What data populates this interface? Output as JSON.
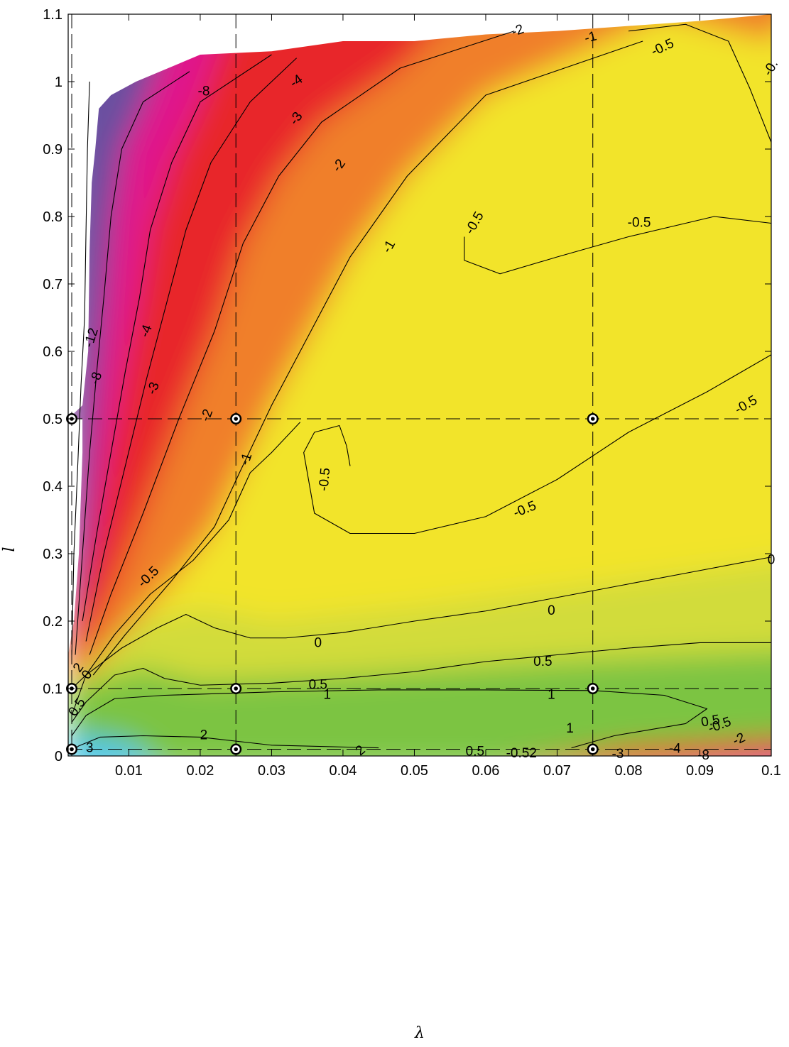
{
  "chart_data": {
    "type": "contour",
    "xlabel": "λ",
    "ylabel": "l",
    "xlim": [
      0.0015,
      0.1
    ],
    "ylim": [
      0,
      1.1
    ],
    "x_ticks": [
      0.01,
      0.02,
      0.03,
      0.04,
      0.05,
      0.06,
      0.07,
      0.08,
      0.09,
      0.1
    ],
    "x_tick_labels": [
      "0.01",
      "0.02",
      "0.03",
      "0.04",
      "0.05",
      "0.06",
      "0.07",
      "0.08",
      "0.09",
      "0.1"
    ],
    "y_ticks": [
      0,
      0.1,
      0.2,
      0.3,
      0.4,
      0.5,
      0.6,
      0.7,
      0.8,
      0.9,
      1.0,
      1.1
    ],
    "y_tick_labels": [
      "0",
      "0.1",
      "0.2",
      "0.3",
      "0.4",
      "0.5",
      "0.6",
      "0.7",
      "0.8",
      "0.9",
      "1",
      "1.1"
    ],
    "grid_lines": {
      "x": [
        0.002,
        0.025,
        0.075
      ],
      "y": [
        0.01,
        0.1,
        0.5
      ],
      "style": "dashed"
    },
    "markers": [
      {
        "x": 0.002,
        "y": 0.01
      },
      {
        "x": 0.025,
        "y": 0.01
      },
      {
        "x": 0.075,
        "y": 0.01
      },
      {
        "x": 0.002,
        "y": 0.1
      },
      {
        "x": 0.025,
        "y": 0.1
      },
      {
        "x": 0.075,
        "y": 0.1
      },
      {
        "x": 0.002,
        "y": 0.5
      },
      {
        "x": 0.025,
        "y": 0.5
      },
      {
        "x": 0.075,
        "y": 0.5
      }
    ],
    "colors": {
      "violet": "#6a4fa0",
      "magenta": "#e0168c",
      "red": "#e8262c",
      "orange": "#f07f2a",
      "yellow": "#f2e42a",
      "yellow_green": "#d2dc3a",
      "green": "#7cc443",
      "cyan": "#40c4ea"
    },
    "contours": [
      {
        "level": -12,
        "points": [
          [
            0.0045,
            1.0
          ],
          [
            0.0042,
            0.9
          ],
          [
            0.004,
            0.78
          ],
          [
            0.0038,
            0.65
          ],
          [
            0.0033,
            0.55
          ],
          [
            0.0028,
            0.42
          ],
          [
            0.0023,
            0.3
          ],
          [
            0.002,
            0.15
          ]
        ]
      },
      {
        "level": -8,
        "points": [
          [
            0.0185,
            1.015
          ],
          [
            0.012,
            0.97
          ],
          [
            0.009,
            0.9
          ],
          [
            0.0075,
            0.8
          ],
          [
            0.0065,
            0.68
          ],
          [
            0.0055,
            0.57
          ],
          [
            0.0045,
            0.45
          ],
          [
            0.0035,
            0.3
          ],
          [
            0.0025,
            0.15
          ]
        ]
      },
      {
        "level": -4,
        "points": [
          [
            0.03,
            1.04
          ],
          [
            0.02,
            0.97
          ],
          [
            0.016,
            0.88
          ],
          [
            0.013,
            0.78
          ],
          [
            0.0115,
            0.68
          ],
          [
            0.0095,
            0.57
          ],
          [
            0.0075,
            0.45
          ],
          [
            0.0055,
            0.33
          ],
          [
            0.0035,
            0.2
          ]
        ]
      },
      {
        "level": -3,
        "points": [
          [
            0.0335,
            1.035
          ],
          [
            0.027,
            0.97
          ],
          [
            0.0215,
            0.88
          ],
          [
            0.018,
            0.78
          ],
          [
            0.0155,
            0.68
          ],
          [
            0.0125,
            0.56
          ],
          [
            0.0095,
            0.43
          ],
          [
            0.0065,
            0.3
          ],
          [
            0.004,
            0.17
          ]
        ]
      },
      {
        "level": -2,
        "points": [
          [
            0.064,
            1.075
          ],
          [
            0.048,
            1.02
          ],
          [
            0.037,
            0.94
          ],
          [
            0.031,
            0.86
          ],
          [
            0.026,
            0.76
          ],
          [
            0.022,
            0.63
          ],
          [
            0.017,
            0.5
          ],
          [
            0.012,
            0.36
          ],
          [
            0.0075,
            0.24
          ],
          [
            0.0045,
            0.15
          ]
        ]
      },
      {
        "level": -1,
        "points": [
          [
            0.082,
            1.06
          ],
          [
            0.06,
            0.98
          ],
          [
            0.049,
            0.86
          ],
          [
            0.041,
            0.74
          ],
          [
            0.035,
            0.62
          ],
          [
            0.03,
            0.52
          ],
          [
            0.0255,
            0.42
          ],
          [
            0.022,
            0.34
          ],
          [
            0.016,
            0.26
          ],
          [
            0.0095,
            0.18
          ],
          [
            0.005,
            0.12
          ]
        ]
      },
      {
        "level": -0.5,
        "points": [
          [
            0.1,
            0.91
          ],
          [
            0.097,
            0.99
          ],
          [
            0.094,
            1.06
          ],
          [
            0.088,
            1.085
          ],
          [
            0.08,
            1.075
          ]
        ]
      },
      {
        "level": -0.5,
        "points": [
          [
            0.1,
            0.79
          ],
          [
            0.092,
            0.8
          ],
          [
            0.08,
            0.77
          ],
          [
            0.07,
            0.74
          ],
          [
            0.062,
            0.715
          ],
          [
            0.057,
            0.735
          ],
          [
            0.057,
            0.77
          ]
        ]
      },
      {
        "level": -0.5,
        "points": [
          [
            0.1,
            0.595
          ],
          [
            0.091,
            0.54
          ],
          [
            0.08,
            0.48
          ],
          [
            0.07,
            0.41
          ],
          [
            0.06,
            0.355
          ],
          [
            0.05,
            0.33
          ],
          [
            0.041,
            0.33
          ],
          [
            0.036,
            0.36
          ],
          [
            0.035,
            0.42
          ],
          [
            0.0345,
            0.45
          ],
          [
            0.036,
            0.48
          ],
          [
            0.0395,
            0.49
          ],
          [
            0.0405,
            0.46
          ],
          [
            0.041,
            0.43
          ]
        ]
      },
      {
        "level": -0.5,
        "points": [
          [
            0.034,
            0.495
          ],
          [
            0.03,
            0.45
          ],
          [
            0.027,
            0.42
          ],
          [
            0.024,
            0.35
          ],
          [
            0.019,
            0.29
          ],
          [
            0.013,
            0.24
          ],
          [
            0.008,
            0.18
          ],
          [
            0.004,
            0.12
          ],
          [
            0.002,
            0.06
          ]
        ]
      },
      {
        "level": 0,
        "points": [
          [
            0.1,
            0.295
          ],
          [
            0.09,
            0.275
          ],
          [
            0.08,
            0.255
          ],
          [
            0.07,
            0.235
          ],
          [
            0.06,
            0.215
          ],
          [
            0.05,
            0.2
          ],
          [
            0.04,
            0.183
          ],
          [
            0.032,
            0.175
          ],
          [
            0.027,
            0.175
          ],
          [
            0.022,
            0.19
          ],
          [
            0.018,
            0.21
          ],
          [
            0.014,
            0.19
          ],
          [
            0.009,
            0.16
          ],
          [
            0.004,
            0.12
          ],
          [
            0.002,
            0.1
          ]
        ]
      },
      {
        "level": 0.5,
        "points": [
          [
            0.1,
            0.168
          ],
          [
            0.09,
            0.168
          ],
          [
            0.08,
            0.16
          ],
          [
            0.07,
            0.15
          ],
          [
            0.06,
            0.14
          ],
          [
            0.05,
            0.125
          ],
          [
            0.04,
            0.115
          ],
          [
            0.03,
            0.108
          ],
          [
            0.02,
            0.105
          ],
          [
            0.015,
            0.115
          ],
          [
            0.012,
            0.13
          ],
          [
            0.008,
            0.12
          ],
          [
            0.004,
            0.08
          ],
          [
            0.002,
            0.05
          ]
        ]
      },
      {
        "level": 1,
        "points": [
          [
            0.072,
            0.012
          ],
          [
            0.078,
            0.03
          ],
          [
            0.088,
            0.048
          ],
          [
            0.091,
            0.07
          ],
          [
            0.085,
            0.09
          ],
          [
            0.075,
            0.097
          ],
          [
            0.06,
            0.098
          ],
          [
            0.045,
            0.098
          ],
          [
            0.03,
            0.095
          ],
          [
            0.015,
            0.09
          ],
          [
            0.008,
            0.085
          ],
          [
            0.004,
            0.06
          ],
          [
            0.002,
            0.03
          ]
        ]
      },
      {
        "level": 2,
        "points": [
          [
            0.045,
            0.012
          ],
          [
            0.03,
            0.016
          ],
          [
            0.02,
            0.028
          ],
          [
            0.012,
            0.03
          ],
          [
            0.006,
            0.028
          ],
          [
            0.003,
            0.015
          ],
          [
            0.002,
            0.008
          ]
        ]
      }
    ],
    "contour_labels": [
      {
        "text": "-12",
        "x": 0.0048,
        "y": 0.62,
        "angle": -72
      },
      {
        "text": "-8",
        "x": 0.0055,
        "y": 0.56,
        "angle": -72
      },
      {
        "text": "-8",
        "x": 0.0205,
        "y": 0.985,
        "angle": 0
      },
      {
        "text": "-4",
        "x": 0.0125,
        "y": 0.63,
        "angle": -70
      },
      {
        "text": "-4",
        "x": 0.0335,
        "y": 1.0,
        "angle": -35
      },
      {
        "text": "-3",
        "x": 0.0135,
        "y": 0.545,
        "angle": -70
      },
      {
        "text": "-3",
        "x": 0.0335,
        "y": 0.945,
        "angle": -55
      },
      {
        "text": "-2",
        "x": 0.021,
        "y": 0.505,
        "angle": -70
      },
      {
        "text": "-2",
        "x": 0.0395,
        "y": 0.875,
        "angle": -55
      },
      {
        "text": "-2",
        "x": 0.0645,
        "y": 1.075,
        "angle": -20
      },
      {
        "text": "-1",
        "x": 0.0265,
        "y": 0.44,
        "angle": -72
      },
      {
        "text": "-1",
        "x": 0.0465,
        "y": 0.755,
        "angle": -60
      },
      {
        "text": "-1",
        "x": 0.0747,
        "y": 1.065,
        "angle": -15
      },
      {
        "text": "-0.5",
        "x": 0.0375,
        "y": 0.41,
        "angle": -85
      },
      {
        "text": "-0.5",
        "x": 0.0585,
        "y": 0.79,
        "angle": -60
      },
      {
        "text": "-0.5",
        "x": 0.0815,
        "y": 0.79,
        "angle": 0
      },
      {
        "text": "-0.5",
        "x": 0.0848,
        "y": 1.05,
        "angle": -25
      },
      {
        "text": "-0.5",
        "x": 0.0965,
        "y": 0.52,
        "angle": -30
      },
      {
        "text": "-0.5",
        "x": 0.0655,
        "y": 0.365,
        "angle": -22
      },
      {
        "text": "-0.5",
        "x": 0.0128,
        "y": 0.265,
        "angle": -45
      },
      {
        "text": "0",
        "x": 0.0692,
        "y": 0.215,
        "angle": 0
      },
      {
        "text": "0",
        "x": 0.1,
        "y": 0.29,
        "angle": 0
      },
      {
        "text": "0",
        "x": 0.0365,
        "y": 0.167,
        "angle": 0
      },
      {
        "text": "0",
        "x": 0.0042,
        "y": 0.12,
        "angle": -55
      },
      {
        "text": "0.5",
        "x": 0.068,
        "y": 0.139,
        "angle": 0
      },
      {
        "text": "0.5",
        "x": 0.0365,
        "y": 0.105,
        "angle": 0
      },
      {
        "text": "0.5",
        "x": 0.0028,
        "y": 0.072,
        "angle": -55
      },
      {
        "text": "1",
        "x": 0.0378,
        "y": 0.09,
        "angle": 0
      },
      {
        "text": "1",
        "x": 0.0692,
        "y": 0.09,
        "angle": 0
      },
      {
        "text": "1",
        "x": 0.0718,
        "y": 0.04,
        "angle": 0
      },
      {
        "text": "2",
        "x": 0.0205,
        "y": 0.03,
        "angle": 0
      },
      {
        "text": "2",
        "x": 0.0425,
        "y": 0.0075,
        "angle": -40
      },
      {
        "text": "2",
        "x": 0.003,
        "y": 0.1305,
        "angle": -55
      },
      {
        "text": "3",
        "x": 0.0045,
        "y": 0.011,
        "angle": 0
      },
      {
        "text": "0.5",
        "x": 0.0915,
        "y": 0.051,
        "angle": -10
      },
      {
        "text": "-0.5",
        "x": 0.0928,
        "y": 0.045,
        "angle": -20
      },
      {
        "text": "-2",
        "x": 0.0955,
        "y": 0.024,
        "angle": -25
      },
      {
        "text": "-4",
        "x": 0.0865,
        "y": 0.01,
        "angle": 0
      },
      {
        "text": "-8",
        "x": 0.0905,
        "y": 0.0,
        "angle": 0
      },
      {
        "text": "-3",
        "x": 0.0785,
        "y": 0.002,
        "angle": 0
      },
      {
        "text": "-0.52",
        "x": 0.065,
        "y": 0.003,
        "angle": 0
      },
      {
        "text": "0.5",
        "x": 0.0585,
        "y": 0.006,
        "angle": 0
      },
      {
        "text": "-0.",
        "x": 0.1,
        "y": 1.02,
        "angle": -60
      }
    ]
  }
}
